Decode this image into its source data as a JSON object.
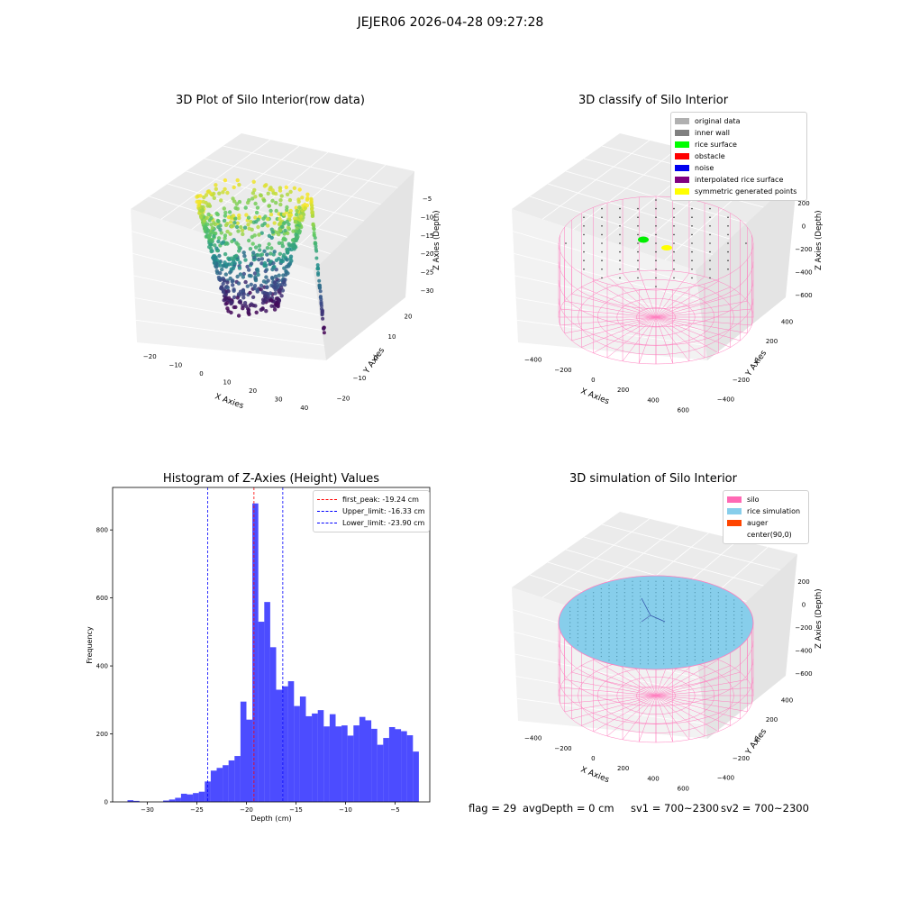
{
  "suptitle": "JEJER06 2026-04-28 09:27:28",
  "panels": {
    "raw": {
      "title": "3D Plot of Silo Interior(row data)",
      "xlabel": "X Axies",
      "ylabel": "Y Axies",
      "zlabel": "Z Axies (Depth)",
      "xticks": [
        "−20",
        "−10",
        "0",
        "10",
        "20",
        "30",
        "40"
      ],
      "yticks": [
        "−20",
        "−10",
        "0",
        "10",
        "20"
      ],
      "zticks": [
        "−5",
        "−10",
        "−15",
        "−20",
        "−25",
        "−30"
      ]
    },
    "classify": {
      "title": "3D classify of Silo Interior",
      "xlabel": "X Axies",
      "ylabel": "Y Axies",
      "zlabel": "Z Axies (Depth)",
      "xticks": [
        "−400",
        "−200",
        "0",
        "200",
        "400",
        "600"
      ],
      "yticks": [
        "−400",
        "−200",
        "0",
        "200",
        "400"
      ],
      "zticks": [
        "200",
        "0",
        "−200",
        "−400",
        "−600"
      ],
      "legend": [
        {
          "label": "original data",
          "color": "#b0b0b0"
        },
        {
          "label": "inner wall",
          "color": "#808080"
        },
        {
          "label": "rice surface",
          "color": "#00ff00"
        },
        {
          "label": "obstacle",
          "color": "#ff0000"
        },
        {
          "label": "noise",
          "color": "#0000ee"
        },
        {
          "label": "interpolated rice surface",
          "color": "#800080"
        },
        {
          "label": "symmetric generated points",
          "color": "#ffff00"
        }
      ]
    },
    "simulation": {
      "title": "3D simulation of Silo Interior",
      "xlabel": "X Axies",
      "ylabel": "Y Axies",
      "zlabel": "Z Axies (Depth)",
      "xticks": [
        "−400",
        "−200",
        "0",
        "200",
        "400",
        "600"
      ],
      "yticks": [
        "−400",
        "−200",
        "0",
        "200",
        "400"
      ],
      "zticks": [
        "200",
        "0",
        "−200",
        "−400",
        "−600"
      ],
      "legend": [
        {
          "label": "silo",
          "color": "#ff69b4"
        },
        {
          "label": "rice simulation",
          "color": "#87ceeb"
        },
        {
          "label": "auger",
          "color": "#ff4500"
        },
        {
          "label": "center(90,0)",
          "color": "#ffffff"
        }
      ]
    }
  },
  "chart_data": {
    "type": "bar",
    "title": "Histogram of Z-Axies (Height) Values",
    "xlabel": "Depth (cm)",
    "ylabel": "Frequency",
    "xlim": [
      -33.5,
      -1.5
    ],
    "ylim": [
      0,
      925
    ],
    "xticks": [
      -30,
      -25,
      -20,
      -15,
      -10,
      -5
    ],
    "yticks": [
      0,
      200,
      400,
      600,
      800
    ],
    "bar_color": "#0000ff",
    "bins": [
      {
        "x0": -32,
        "x1": -31.4,
        "v": 5
      },
      {
        "x0": -31.4,
        "x1": -30.8,
        "v": 3
      },
      {
        "x0": -30.8,
        "x1": -30.2,
        "v": 0
      },
      {
        "x0": -30.2,
        "x1": -29.6,
        "v": 0
      },
      {
        "x0": -29.6,
        "x1": -29.0,
        "v": 0
      },
      {
        "x0": -29.0,
        "x1": -28.4,
        "v": 0
      },
      {
        "x0": -28.4,
        "x1": -27.8,
        "v": 4
      },
      {
        "x0": -27.8,
        "x1": -27.2,
        "v": 7
      },
      {
        "x0": -27.2,
        "x1": -26.6,
        "v": 12
      },
      {
        "x0": -26.6,
        "x1": -26.0,
        "v": 24
      },
      {
        "x0": -26.0,
        "x1": -25.4,
        "v": 22
      },
      {
        "x0": -25.4,
        "x1": -24.8,
        "v": 26
      },
      {
        "x0": -24.8,
        "x1": -24.2,
        "v": 30
      },
      {
        "x0": -24.2,
        "x1": -23.6,
        "v": 60
      },
      {
        "x0": -23.6,
        "x1": -23.0,
        "v": 92
      },
      {
        "x0": -23.0,
        "x1": -22.4,
        "v": 100
      },
      {
        "x0": -22.4,
        "x1": -21.8,
        "v": 108
      },
      {
        "x0": -21.8,
        "x1": -21.2,
        "v": 122
      },
      {
        "x0": -21.2,
        "x1": -20.6,
        "v": 135
      },
      {
        "x0": -20.6,
        "x1": -20.0,
        "v": 295
      },
      {
        "x0": -20.0,
        "x1": -19.4,
        "v": 242
      },
      {
        "x0": -19.4,
        "x1": -18.8,
        "v": 878
      },
      {
        "x0": -18.8,
        "x1": -18.2,
        "v": 530
      },
      {
        "x0": -18.2,
        "x1": -17.6,
        "v": 588
      },
      {
        "x0": -17.6,
        "x1": -17.0,
        "v": 455
      },
      {
        "x0": -17.0,
        "x1": -16.4,
        "v": 330
      },
      {
        "x0": -16.4,
        "x1": -15.8,
        "v": 340
      },
      {
        "x0": -15.8,
        "x1": -15.2,
        "v": 355
      },
      {
        "x0": -15.2,
        "x1": -14.6,
        "v": 282
      },
      {
        "x0": -14.6,
        "x1": -14.0,
        "v": 310
      },
      {
        "x0": -14.0,
        "x1": -13.4,
        "v": 252
      },
      {
        "x0": -13.4,
        "x1": -12.8,
        "v": 260
      },
      {
        "x0": -12.8,
        "x1": -12.2,
        "v": 270
      },
      {
        "x0": -12.2,
        "x1": -11.6,
        "v": 222
      },
      {
        "x0": -11.6,
        "x1": -11.0,
        "v": 258
      },
      {
        "x0": -11.0,
        "x1": -10.4,
        "v": 222
      },
      {
        "x0": -10.4,
        "x1": -9.8,
        "v": 225
      },
      {
        "x0": -9.8,
        "x1": -9.2,
        "v": 195
      },
      {
        "x0": -9.2,
        "x1": -8.6,
        "v": 225
      },
      {
        "x0": -8.6,
        "x1": -8.0,
        "v": 250
      },
      {
        "x0": -8.0,
        "x1": -7.4,
        "v": 240
      },
      {
        "x0": -7.4,
        "x1": -6.8,
        "v": 215
      },
      {
        "x0": -6.8,
        "x1": -6.2,
        "v": 168
      },
      {
        "x0": -6.2,
        "x1": -5.6,
        "v": 188
      },
      {
        "x0": -5.6,
        "x1": -5.0,
        "v": 220
      },
      {
        "x0": -5.0,
        "x1": -4.4,
        "v": 214
      },
      {
        "x0": -4.4,
        "x1": -3.8,
        "v": 208
      },
      {
        "x0": -3.8,
        "x1": -3.2,
        "v": 196
      },
      {
        "x0": -3.2,
        "x1": -2.6,
        "v": 148
      }
    ],
    "vlines": [
      {
        "label": "first_peak: -19.24 cm",
        "x": -19.24,
        "color": "#ff0000"
      },
      {
        "label": "Upper_limit: -16.33 cm",
        "x": -16.33,
        "color": "#0000ff"
      },
      {
        "label": "Lower_limit: -23.90 cm",
        "x": -23.9,
        "color": "#0000ff"
      }
    ],
    "legend_position": "top-right"
  },
  "footer": {
    "flag": "flag = 29",
    "avg": "avgDepth = 0 cm",
    "sv1": "sv1 = 700~2300",
    "sv2": "sv2 = 700~2300"
  }
}
